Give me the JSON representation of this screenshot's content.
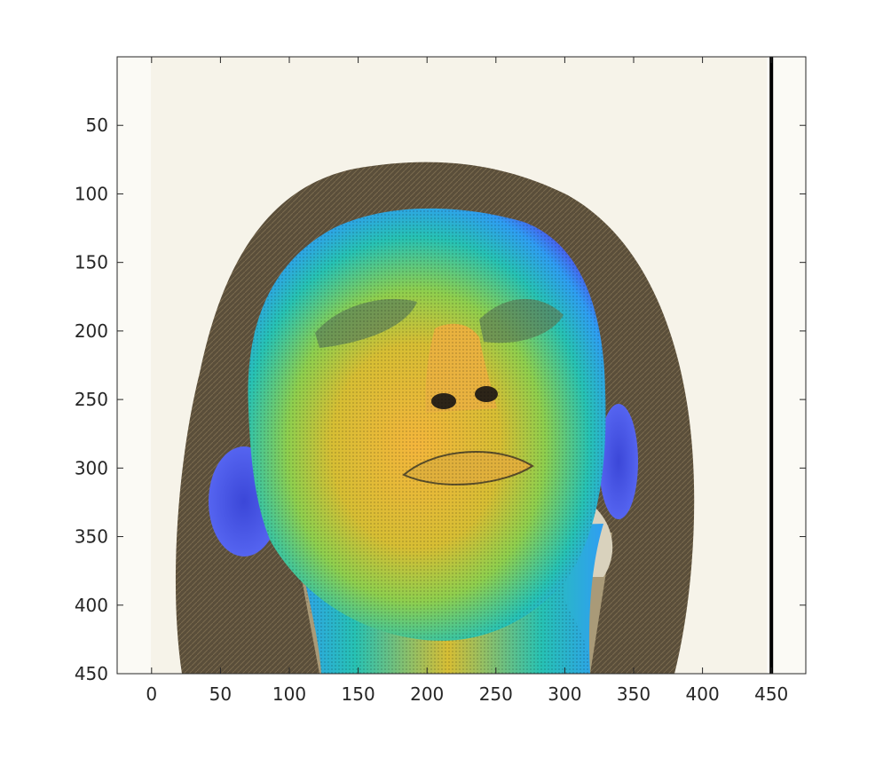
{
  "chart_data": {
    "type": "image",
    "title": "",
    "xlabel": "",
    "ylabel": "",
    "xlim": [
      -25,
      475
    ],
    "ylim": [
      450,
      0
    ],
    "xticks": [
      0,
      50,
      100,
      150,
      200,
      250,
      300,
      350,
      400,
      450
    ],
    "xtick_labels": [
      "0",
      "50",
      "100",
      "150",
      "200",
      "250",
      "300",
      "350",
      "400",
      "450"
    ],
    "yticks": [
      50,
      100,
      150,
      200,
      250,
      300,
      350,
      400,
      450
    ],
    "ytick_labels": [
      "50",
      "100",
      "150",
      "200",
      "250",
      "300",
      "350",
      "400",
      "450"
    ],
    "background_image": "sepia photo of a woman with long hair, face tilted upward",
    "overlay": "dense 3D face mesh point cloud colored by depth (blue at edges to yellow at center)",
    "vertical_line_x": 450,
    "colors": {
      "axis": "#262626",
      "photo_bg": "#fbfaf5",
      "hair": "#5a4e3a",
      "skin": "#a99a78",
      "mesh_low": "#4a5cf0",
      "mesh_mid": "#27c2b4",
      "mesh_high": "#f2b93a",
      "line": "#000000"
    }
  }
}
